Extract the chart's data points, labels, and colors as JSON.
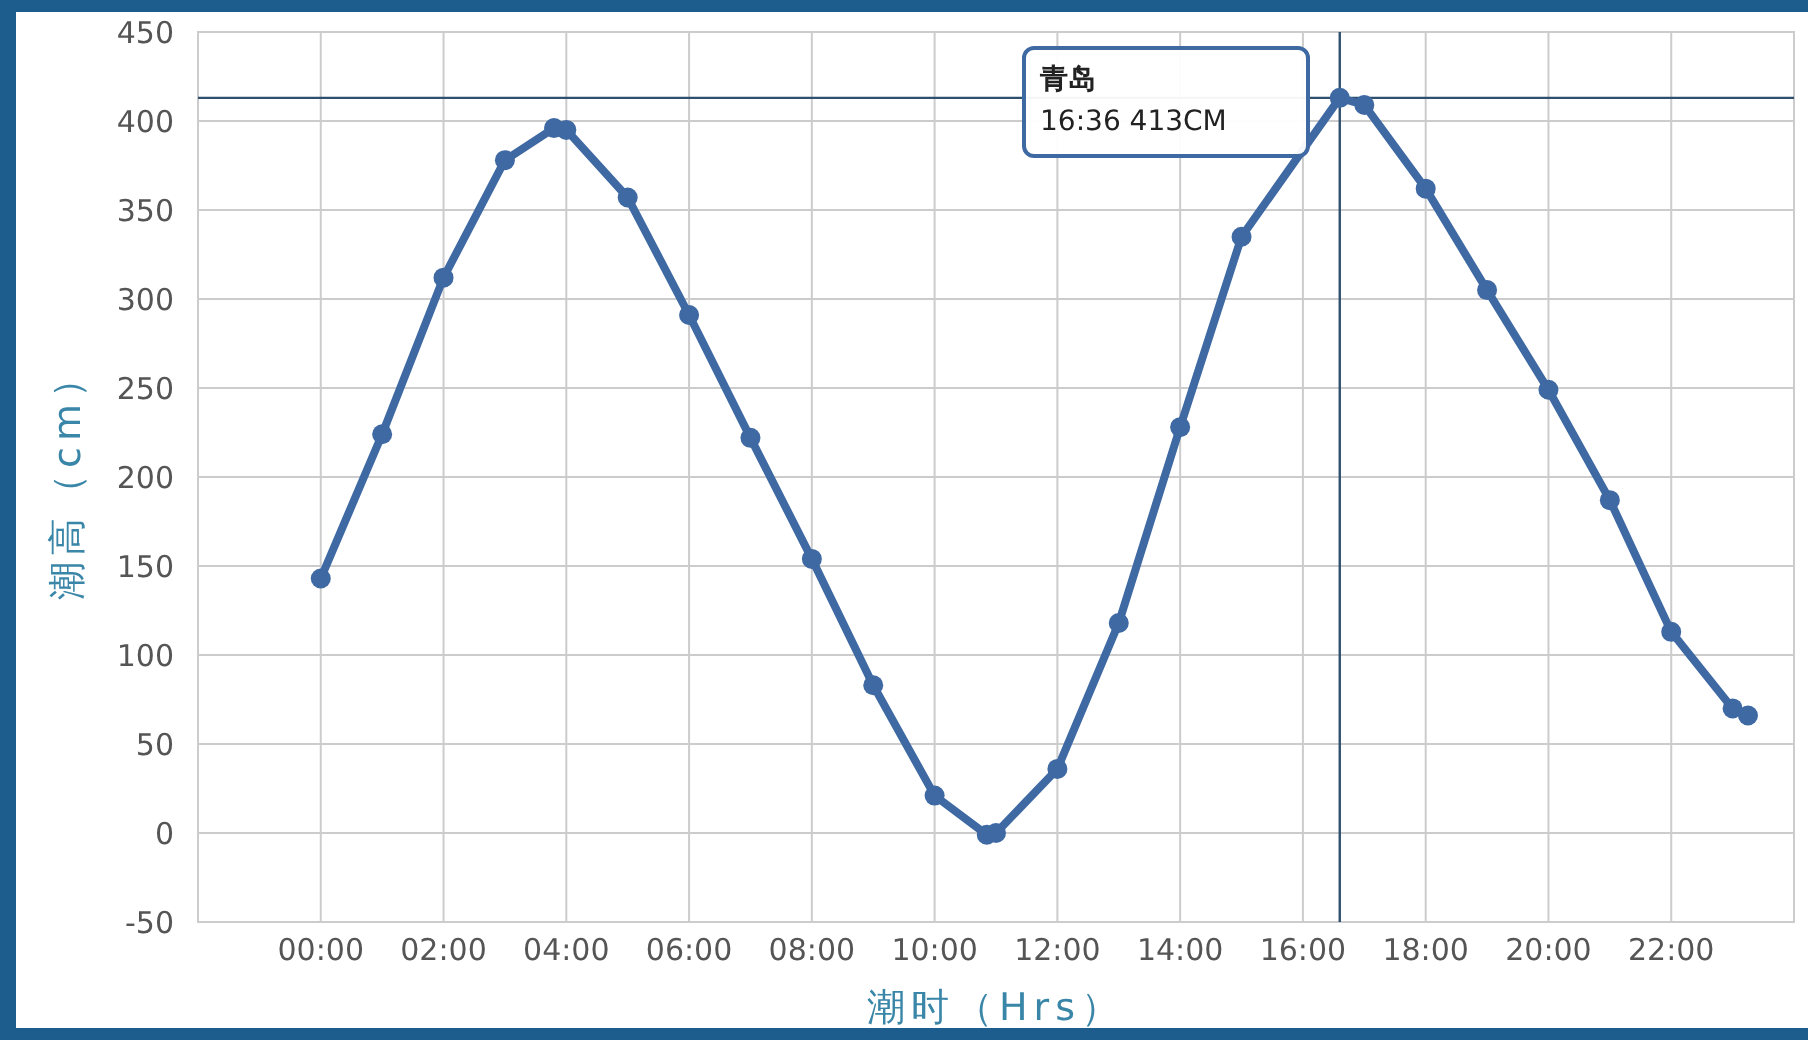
{
  "chart_data": {
    "type": "line",
    "xlabel": "潮时（Hrs）",
    "ylabel": "潮高（cm）",
    "x": [
      0,
      1,
      2,
      3,
      3.8,
      4,
      5,
      6,
      7,
      8,
      9,
      10,
      10.85,
      11,
      12,
      13,
      14,
      15,
      16.6,
      17,
      18,
      19,
      20,
      21,
      22,
      23,
      23.25
    ],
    "series": [
      {
        "color": "#3f69a3",
        "values": [
          143,
          224,
          312,
          378,
          396,
          395,
          357,
          291,
          222,
          154,
          83,
          21,
          -1,
          0,
          36,
          118,
          228,
          335,
          413,
          409,
          362,
          305,
          249,
          187,
          113,
          70,
          66
        ]
      }
    ],
    "xlim": [
      -2,
      24
    ],
    "ylim": [
      -50,
      450
    ],
    "xticks": [
      {
        "value": 0,
        "label": "00:00"
      },
      {
        "value": 2,
        "label": "02:00"
      },
      {
        "value": 4,
        "label": "04:00"
      },
      {
        "value": 6,
        "label": "06:00"
      },
      {
        "value": 8,
        "label": "08:00"
      },
      {
        "value": 10,
        "label": "10:00"
      },
      {
        "value": 12,
        "label": "12:00"
      },
      {
        "value": 14,
        "label": "14:00"
      },
      {
        "value": 16,
        "label": "16:00"
      },
      {
        "value": 18,
        "label": "18:00"
      },
      {
        "value": 20,
        "label": "20:00"
      },
      {
        "value": 22,
        "label": "22:00"
      }
    ],
    "yticks": [
      -50,
      0,
      50,
      100,
      150,
      200,
      250,
      300,
      350,
      400,
      450
    ],
    "grid": true,
    "marker": "circle",
    "line_style": "solid",
    "ref_lines": [
      {
        "axis": "x",
        "value": 16.6,
        "color": "#2f4f6f"
      },
      {
        "axis": "y",
        "value": 413,
        "color": "#2f4f6f"
      }
    ],
    "annotations": [
      "青岛\n16:36 413CM"
    ]
  }
}
